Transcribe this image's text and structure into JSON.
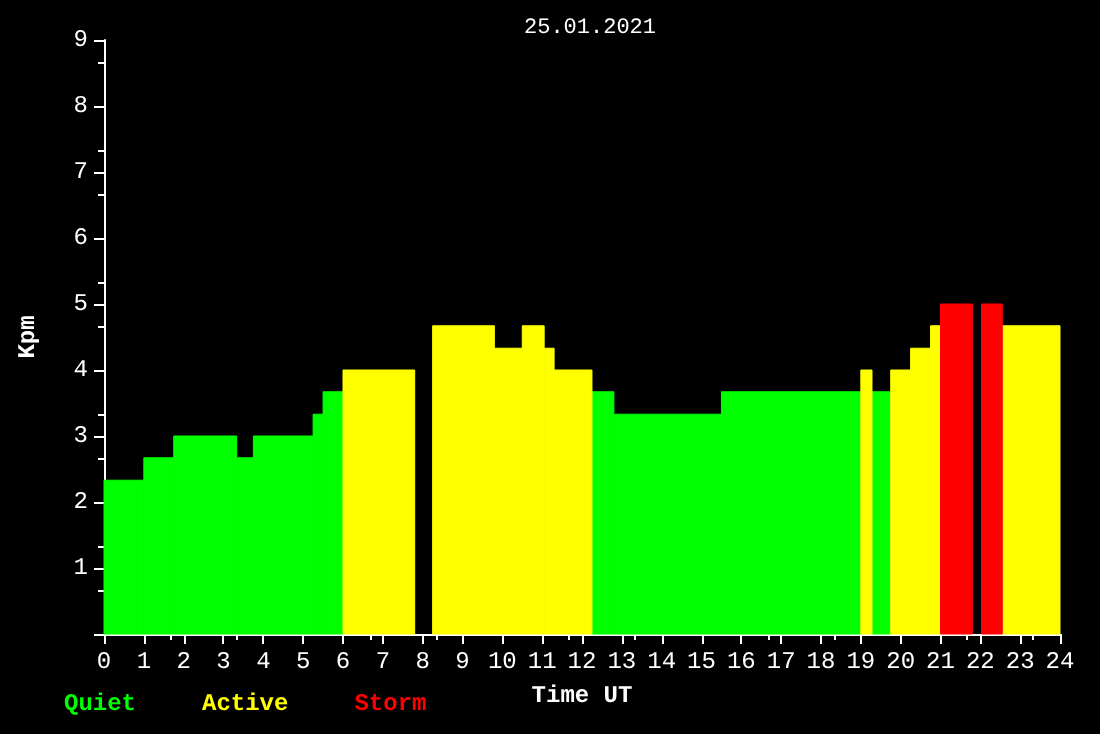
{
  "chart_data": {
    "type": "histogram",
    "title": "25.01.2021",
    "xlabel": "Time UT",
    "ylabel": "Kpm",
    "bins": [
      0,
      1,
      1.75,
      3.33,
      3.75,
      5.25,
      5.5,
      6,
      7.8,
      8.25,
      9.8,
      10.5,
      11.05,
      11.3,
      12.25,
      12.8,
      15.5,
      19,
      19.28,
      19.75,
      20.25,
      20.75,
      21,
      21.8,
      22.03,
      22.55,
      24
    ],
    "series": [
      {
        "name": "Quiet",
        "color": "#00ff00",
        "values": [
          2.33,
          2.67,
          3,
          2.67,
          3,
          3.33,
          3.67,
          null,
          null,
          null,
          null,
          null,
          null,
          null,
          3.67,
          3.33,
          3.67,
          null,
          3.67,
          null,
          null,
          null,
          null,
          null,
          null,
          null
        ]
      },
      {
        "name": "Active",
        "color": "#ffff00",
        "values": [
          null,
          null,
          null,
          null,
          null,
          null,
          null,
          4,
          null,
          4.67,
          4.33,
          4.67,
          4.33,
          4,
          null,
          null,
          null,
          4,
          null,
          4,
          4.33,
          4.67,
          null,
          null,
          null,
          4.67
        ]
      },
      {
        "name": "Storm",
        "color": "#ff0000",
        "values": [
          null,
          null,
          null,
          null,
          null,
          null,
          null,
          null,
          null,
          null,
          null,
          null,
          null,
          null,
          null,
          null,
          null,
          null,
          null,
          null,
          null,
          null,
          5,
          null,
          5,
          null
        ]
      }
    ],
    "xlim": [
      0,
      24
    ],
    "xticks": [
      0,
      1,
      2,
      3,
      4,
      5,
      6,
      7,
      8,
      9,
      10,
      11,
      12,
      13,
      14,
      15,
      16,
      17,
      18,
      19,
      20,
      21,
      22,
      23,
      24
    ],
    "ylim": [
      0,
      9
    ],
    "yticks": [
      {
        "value": 0,
        "label": null
      },
      1,
      2,
      3,
      4,
      5,
      6,
      7,
      8,
      9
    ],
    "legend": "bottom left",
    "grid": false
  }
}
